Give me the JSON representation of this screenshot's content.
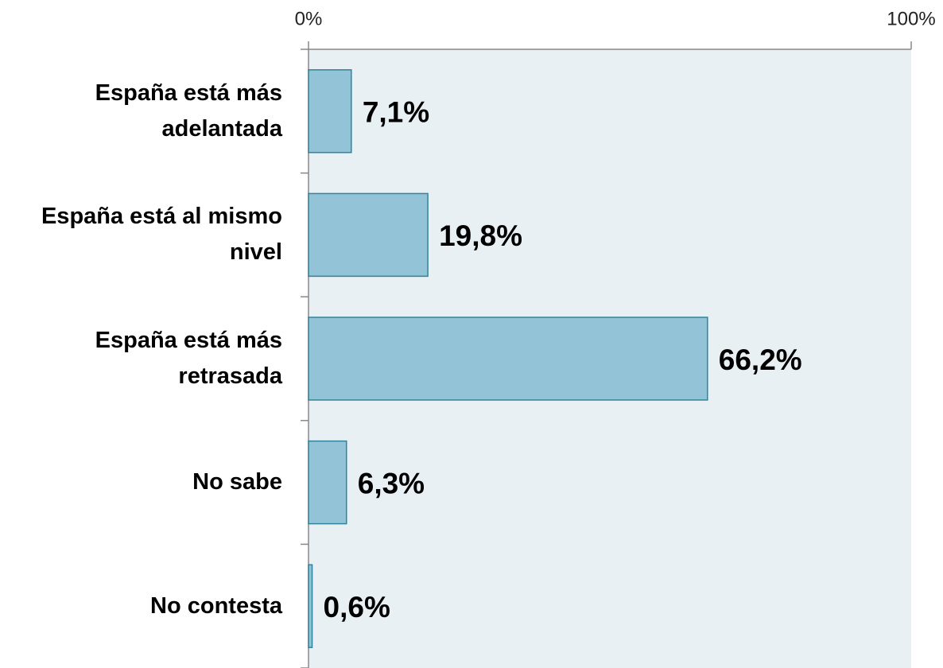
{
  "chart_data": {
    "type": "hbar",
    "categories": [
      "España está más adelantada",
      "España está al mismo nivel",
      "España está más retrasada",
      "No sabe",
      "No contesta"
    ],
    "values": [
      7.1,
      19.8,
      66.2,
      6.3,
      0.6
    ],
    "value_labels": [
      "7,1%",
      "19,8%",
      "66,2%",
      "6,3%",
      "0,6%"
    ],
    "color": "#93c3d6",
    "xlim": [
      0,
      100
    ],
    "xticks": [
      {
        "value": 0,
        "label": "0%"
      },
      {
        "value": 100,
        "label": "100%"
      }
    ]
  }
}
